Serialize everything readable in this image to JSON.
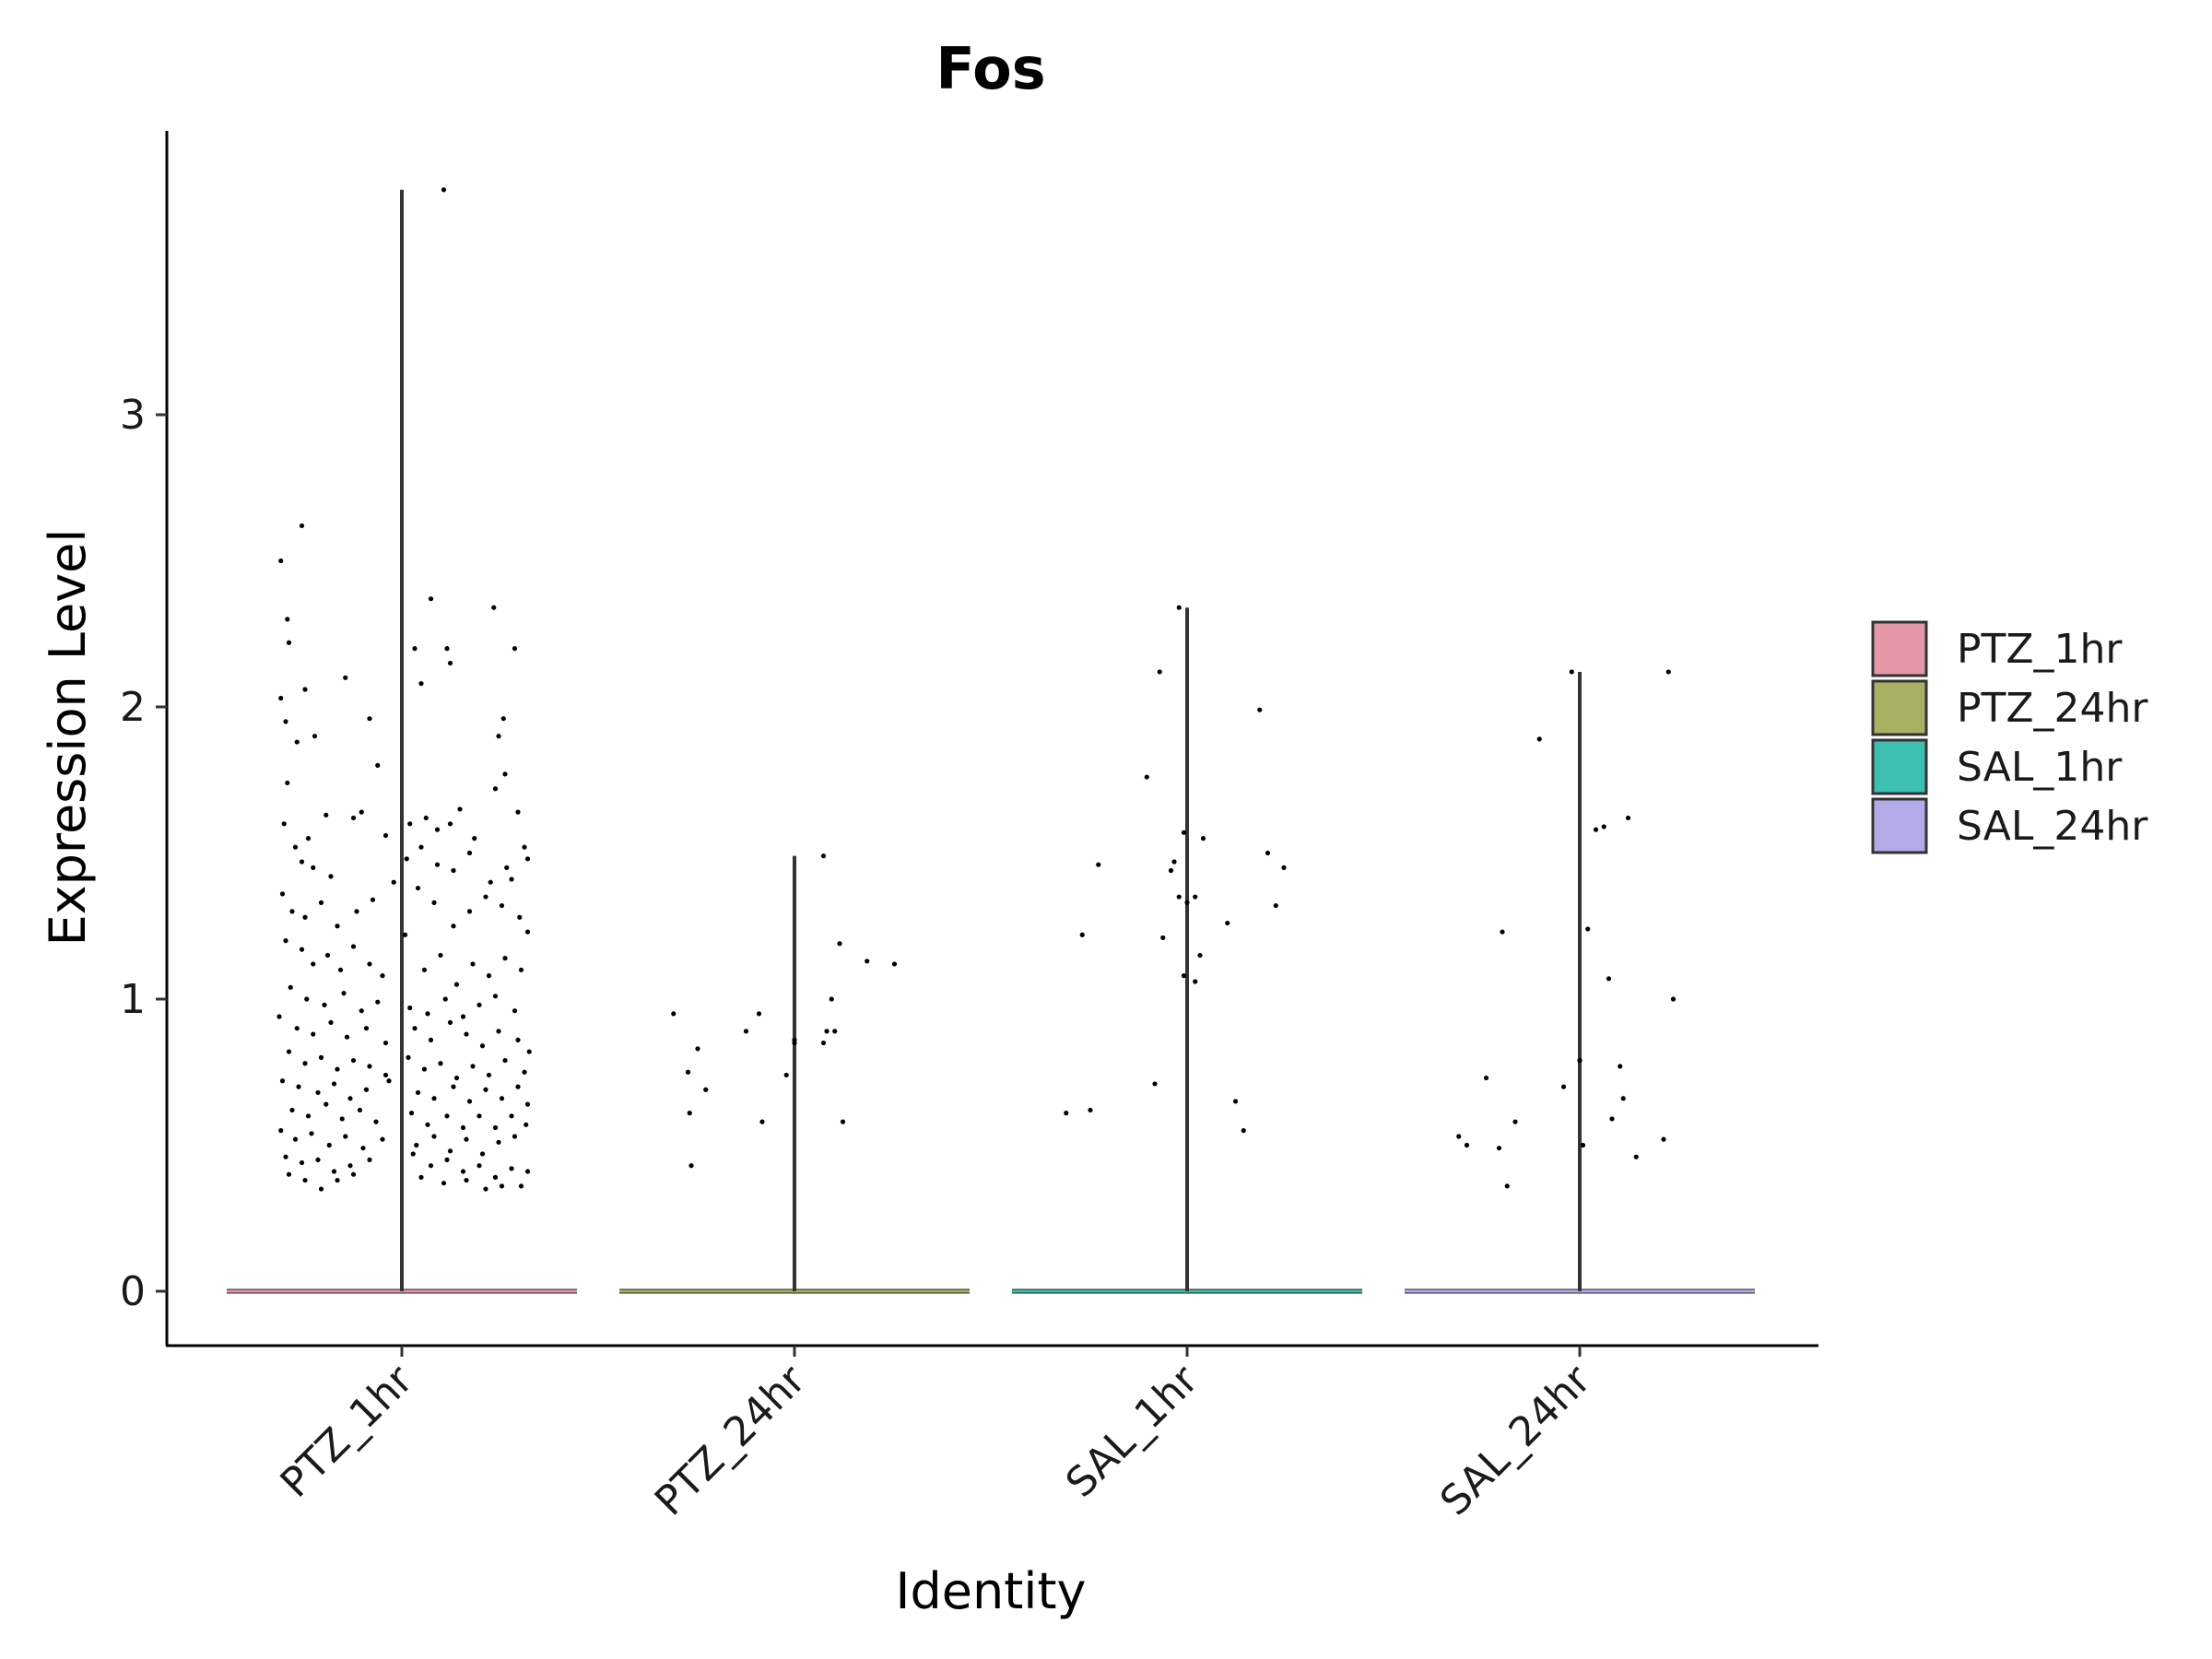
{
  "chart_data": {
    "type": "violin",
    "title": "Fos",
    "xlabel": "Identity",
    "ylabel": "Expression Level",
    "categories": [
      "PTZ_1hr",
      "PTZ_24hr",
      "SAL_1hr",
      "SAL_24hr"
    ],
    "colors": {
      "PTZ_1hr": "#e597a7",
      "PTZ_24hr": "#aab062",
      "SAL_1hr": "#3cbfb0",
      "SAL_24hr": "#b3aae8"
    },
    "y_ticks": [
      0,
      1,
      2,
      3
    ],
    "ylim": [
      -0.18,
      4.15
    ],
    "legend": [
      "PTZ_1hr",
      "PTZ_24hr",
      "SAL_1hr",
      "SAL_24hr"
    ],
    "legend_position": "right",
    "grid": false,
    "series": [
      {
        "name": "PTZ_1hr",
        "max": 3.77,
        "jitter_points": [
          [
            -0.75,
            2.5
          ],
          [
            -0.62,
            2.62
          ],
          [
            -0.71,
            2.3
          ],
          [
            -0.7,
            2.22
          ],
          [
            -0.75,
            2.03
          ],
          [
            -0.6,
            2.06
          ],
          [
            -0.35,
            2.1
          ],
          [
            -0.72,
            1.95
          ],
          [
            -0.65,
            1.88
          ],
          [
            0.08,
            2.2
          ],
          [
            0.12,
            2.08
          ],
          [
            0.18,
            2.37
          ],
          [
            0.28,
            2.2
          ],
          [
            0.3,
            2.15
          ],
          [
            0.57,
            2.34
          ],
          [
            0.63,
            1.96
          ],
          [
            0.7,
            2.2
          ],
          [
            0.6,
            1.9
          ],
          [
            0.64,
            1.77
          ],
          [
            0.58,
            1.72
          ],
          [
            -0.54,
            1.9
          ],
          [
            -0.2,
            1.96
          ],
          [
            -0.15,
            1.8
          ],
          [
            -0.71,
            1.74
          ],
          [
            -0.73,
            1.6
          ],
          [
            -0.66,
            1.52
          ],
          [
            -0.58,
            1.55
          ],
          [
            -0.47,
            1.63
          ],
          [
            -0.3,
            1.62
          ],
          [
            -0.25,
            1.64
          ],
          [
            0.05,
            1.6
          ],
          [
            0.15,
            1.62
          ],
          [
            0.22,
            1.58
          ],
          [
            0.3,
            1.6
          ],
          [
            0.36,
            1.65
          ],
          [
            0.45,
            1.55
          ],
          [
            0.72,
            1.64
          ],
          [
            0.76,
            1.52
          ],
          [
            0.78,
            1.48
          ],
          [
            0.65,
            1.45
          ],
          [
            0.55,
            1.4
          ],
          [
            -0.74,
            1.36
          ],
          [
            -0.68,
            1.3
          ],
          [
            -0.6,
            1.28
          ],
          [
            -0.5,
            1.33
          ],
          [
            -0.4,
            1.25
          ],
          [
            -0.28,
            1.3
          ],
          [
            -0.18,
            1.34
          ],
          [
            -0.05,
            1.4
          ],
          [
            0.1,
            1.38
          ],
          [
            0.2,
            1.33
          ],
          [
            0.32,
            1.25
          ],
          [
            0.42,
            1.3
          ],
          [
            0.52,
            1.35
          ],
          [
            0.62,
            1.32
          ],
          [
            0.73,
            1.28
          ],
          [
            0.78,
            1.23
          ],
          [
            -0.72,
            1.2
          ],
          [
            -0.62,
            1.17
          ],
          [
            -0.55,
            1.12
          ],
          [
            -0.46,
            1.15
          ],
          [
            -0.38,
            1.1
          ],
          [
            -0.3,
            1.18
          ],
          [
            -0.2,
            1.12
          ],
          [
            -0.12,
            1.08
          ],
          [
            0.02,
            1.22
          ],
          [
            0.14,
            1.1
          ],
          [
            0.24,
            1.15
          ],
          [
            0.34,
            1.05
          ],
          [
            0.44,
            1.12
          ],
          [
            0.54,
            1.08
          ],
          [
            0.64,
            1.14
          ],
          [
            0.74,
            1.1
          ],
          [
            -0.69,
            1.04
          ],
          [
            -0.59,
            1.0
          ],
          [
            -0.48,
            0.98
          ],
          [
            -0.36,
            1.02
          ],
          [
            -0.25,
            0.96
          ],
          [
            -0.15,
            0.99
          ],
          [
            0.05,
            0.97
          ],
          [
            0.16,
            0.95
          ],
          [
            0.27,
            1.0
          ],
          [
            0.38,
            0.94
          ],
          [
            0.48,
            0.98
          ],
          [
            0.58,
            1.01
          ],
          [
            0.7,
            0.96
          ],
          [
            -0.76,
            0.94
          ],
          [
            -0.65,
            0.9
          ],
          [
            -0.55,
            0.88
          ],
          [
            -0.44,
            0.92
          ],
          [
            -0.34,
            0.87
          ],
          [
            -0.22,
            0.9
          ],
          [
            -0.1,
            0.85
          ],
          [
            0.08,
            0.9
          ],
          [
            0.18,
            0.86
          ],
          [
            0.3,
            0.92
          ],
          [
            0.4,
            0.88
          ],
          [
            0.5,
            0.84
          ],
          [
            0.6,
            0.89
          ],
          [
            0.72,
            0.86
          ],
          [
            0.79,
            0.82
          ],
          [
            -0.7,
            0.82
          ],
          [
            -0.6,
            0.78
          ],
          [
            -0.5,
            0.8
          ],
          [
            -0.4,
            0.76
          ],
          [
            -0.3,
            0.79
          ],
          [
            -0.2,
            0.77
          ],
          [
            -0.1,
            0.74
          ],
          [
            0.04,
            0.8
          ],
          [
            0.14,
            0.76
          ],
          [
            0.24,
            0.78
          ],
          [
            0.34,
            0.73
          ],
          [
            0.44,
            0.77
          ],
          [
            0.54,
            0.74
          ],
          [
            0.64,
            0.79
          ],
          [
            0.76,
            0.75
          ],
          [
            -0.74,
            0.72
          ],
          [
            -0.64,
            0.7
          ],
          [
            -0.52,
            0.68
          ],
          [
            -0.42,
            0.71
          ],
          [
            -0.32,
            0.66
          ],
          [
            -0.22,
            0.69
          ],
          [
            -0.08,
            0.72
          ],
          [
            0.1,
            0.68
          ],
          [
            0.2,
            0.66
          ],
          [
            0.32,
            0.7
          ],
          [
            0.42,
            0.65
          ],
          [
            0.52,
            0.69
          ],
          [
            0.62,
            0.66
          ],
          [
            0.72,
            0.7
          ],
          [
            0.78,
            0.64
          ],
          [
            -0.68,
            0.62
          ],
          [
            -0.58,
            0.6
          ],
          [
            -0.47,
            0.64
          ],
          [
            -0.37,
            0.59
          ],
          [
            -0.26,
            0.62
          ],
          [
            -0.16,
            0.58
          ],
          [
            0.06,
            0.61
          ],
          [
            0.16,
            0.57
          ],
          [
            0.28,
            0.6
          ],
          [
            0.38,
            0.56
          ],
          [
            0.48,
            0.6
          ],
          [
            0.58,
            0.56
          ],
          [
            0.68,
            0.6
          ],
          [
            0.77,
            0.57
          ],
          [
            -0.75,
            0.55
          ],
          [
            -0.66,
            0.52
          ],
          [
            -0.56,
            0.54
          ],
          [
            -0.45,
            0.5
          ],
          [
            -0.35,
            0.53
          ],
          [
            -0.24,
            0.49
          ],
          [
            -0.12,
            0.52
          ],
          [
            0.09,
            0.5
          ],
          [
            0.2,
            0.53
          ],
          [
            0.3,
            0.48
          ],
          [
            0.4,
            0.52
          ],
          [
            0.5,
            0.47
          ],
          [
            0.6,
            0.51
          ],
          [
            0.7,
            0.53
          ],
          [
            -0.72,
            0.46
          ],
          [
            -0.62,
            0.44
          ],
          [
            -0.52,
            0.45
          ],
          [
            -0.42,
            0.41
          ],
          [
            -0.32,
            0.43
          ],
          [
            -0.2,
            0.45
          ],
          [
            0.07,
            0.47
          ],
          [
            0.18,
            0.43
          ],
          [
            0.28,
            0.45
          ],
          [
            0.38,
            0.41
          ],
          [
            0.48,
            0.43
          ],
          [
            0.58,
            0.39
          ],
          [
            0.68,
            0.42
          ],
          [
            0.78,
            0.41
          ],
          [
            -0.7,
            0.4
          ],
          [
            -0.6,
            0.38
          ],
          [
            -0.5,
            0.35
          ],
          [
            -0.4,
            0.38
          ],
          [
            -0.3,
            0.4
          ],
          [
            0.12,
            0.39
          ],
          [
            0.26,
            0.37
          ],
          [
            0.4,
            0.38
          ],
          [
            0.52,
            0.35
          ],
          [
            0.62,
            0.36
          ],
          [
            0.74,
            0.36
          ],
          [
            0.26,
            3.77
          ],
          [
            -0.55,
            1.45
          ],
          [
            -0.44,
            1.42
          ],
          [
            0.03,
            1.48
          ],
          [
            0.22,
            1.46
          ],
          [
            0.42,
            1.5
          ],
          [
            0.68,
            1.41
          ],
          [
            -0.62,
            1.47
          ],
          [
            -0.1,
            1.56
          ],
          [
            0.12,
            1.52
          ],
          [
            0.32,
            1.44
          ]
        ]
      },
      {
        "name": "PTZ_24hr",
        "max": 1.49,
        "jitter_points": [
          [
            -0.75,
            0.95
          ],
          [
            -0.6,
            0.83
          ],
          [
            -0.66,
            0.75
          ],
          [
            -0.55,
            0.69
          ],
          [
            -0.65,
            0.61
          ],
          [
            -0.64,
            0.43
          ],
          [
            -0.2,
            0.58
          ],
          [
            -0.3,
            0.89
          ],
          [
            -0.22,
            0.95
          ],
          [
            -0.05,
            0.74
          ],
          [
            0.0,
            0.85
          ],
          [
            0.0,
            0.86
          ],
          [
            0.18,
            0.85
          ],
          [
            0.2,
            0.89
          ],
          [
            0.25,
            0.89
          ],
          [
            0.23,
            1.0
          ],
          [
            0.28,
            1.19
          ],
          [
            0.45,
            1.13
          ],
          [
            0.62,
            1.12
          ],
          [
            0.18,
            1.49
          ],
          [
            0.3,
            0.58
          ]
        ]
      },
      {
        "name": "SAL_1hr",
        "max": 2.34,
        "jitter_points": [
          [
            -0.75,
            0.61
          ],
          [
            -0.6,
            0.62
          ],
          [
            -0.55,
            1.46
          ],
          [
            -0.65,
            1.22
          ],
          [
            -0.25,
            1.76
          ],
          [
            -0.17,
            2.12
          ],
          [
            -0.2,
            0.71
          ],
          [
            -0.1,
            1.44
          ],
          [
            -0.08,
            1.47
          ],
          [
            -0.05,
            1.35
          ],
          [
            -0.02,
            1.57
          ],
          [
            0.0,
            1.33
          ],
          [
            0.05,
            1.35
          ],
          [
            0.08,
            1.15
          ],
          [
            -0.15,
            1.21
          ],
          [
            -0.02,
            1.08
          ],
          [
            0.05,
            1.06
          ],
          [
            -0.05,
            2.34
          ],
          [
            0.1,
            1.55
          ],
          [
            0.25,
            1.26
          ],
          [
            0.3,
            0.65
          ],
          [
            0.35,
            0.55
          ],
          [
            0.45,
            1.99
          ],
          [
            0.5,
            1.5
          ],
          [
            0.55,
            1.32
          ],
          [
            0.6,
            1.45
          ]
        ]
      },
      {
        "name": "SAL_24hr",
        "max": 2.12,
        "jitter_points": [
          [
            -0.75,
            0.53
          ],
          [
            -0.7,
            0.5
          ],
          [
            -0.58,
            0.73
          ],
          [
            -0.5,
            0.49
          ],
          [
            -0.45,
            0.36
          ],
          [
            -0.48,
            1.23
          ],
          [
            -0.4,
            0.58
          ],
          [
            -0.25,
            1.89
          ],
          [
            -0.1,
            0.7
          ],
          [
            -0.05,
            2.12
          ],
          [
            0.0,
            0.79
          ],
          [
            0.0,
            0.79
          ],
          [
            0.02,
            0.5
          ],
          [
            0.05,
            1.24
          ],
          [
            0.1,
            1.58
          ],
          [
            0.15,
            1.59
          ],
          [
            0.18,
            1.07
          ],
          [
            0.2,
            0.59
          ],
          [
            0.25,
            0.77
          ],
          [
            0.27,
            0.66
          ],
          [
            0.3,
            1.62
          ],
          [
            0.35,
            0.46
          ],
          [
            0.52,
            0.52
          ],
          [
            0.55,
            2.12
          ],
          [
            0.58,
            1.0
          ]
        ]
      }
    ]
  }
}
